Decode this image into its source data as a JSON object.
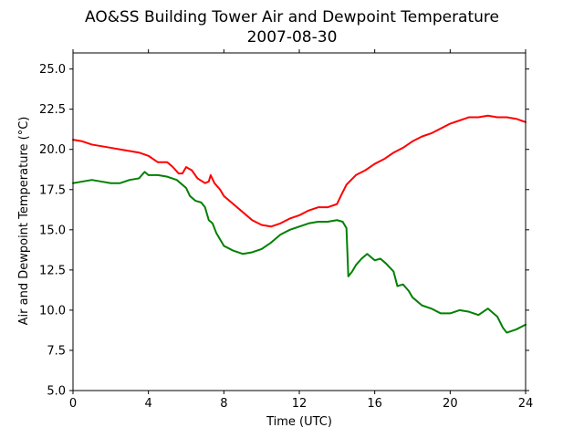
{
  "chart_data": {
    "type": "line",
    "title": "AO&SS Building Tower Air and Dewpoint Temperature",
    "subtitle": "2007-08-30",
    "xlabel": "Time (UTC)",
    "ylabel": "Air and Dewpoint Temperature (°C)",
    "xlim": [
      0,
      24
    ],
    "ylim": [
      5.0,
      26.0
    ],
    "x_ticks": [
      0,
      4,
      8,
      12,
      16,
      20,
      24
    ],
    "x_tick_labels": [
      "0",
      "4",
      "8",
      "12",
      "16",
      "20",
      "24"
    ],
    "y_ticks": [
      5.0,
      7.5,
      10.0,
      12.5,
      15.0,
      17.5,
      20.0,
      22.5,
      25.0
    ],
    "y_tick_labels": [
      "5.0",
      "7.5",
      "10.0",
      "12.5",
      "15.0",
      "17.5",
      "20.0",
      "22.5",
      "25.0"
    ],
    "grid": false,
    "legend": "none",
    "series": [
      {
        "color": "#ff0000",
        "x": [
          0,
          0.5,
          1,
          1.5,
          2,
          2.5,
          3,
          3.5,
          4,
          4.5,
          5,
          5.3,
          5.6,
          5.8,
          6,
          6.3,
          6.6,
          7,
          7.2,
          7.3,
          7.5,
          7.8,
          8,
          8.5,
          9,
          9.5,
          10,
          10.5,
          11,
          11.5,
          12,
          12.5,
          13,
          13.5,
          14,
          14.2,
          14.5,
          15,
          15.5,
          16,
          16.5,
          17,
          17.5,
          18,
          18.5,
          19,
          19.5,
          20,
          20.5,
          21,
          21.5,
          22,
          22.5,
          23,
          23.5,
          24
        ],
        "y": [
          20.6,
          20.5,
          20.3,
          20.2,
          20.1,
          20.0,
          19.9,
          19.8,
          19.6,
          19.2,
          19.2,
          18.9,
          18.5,
          18.5,
          18.9,
          18.7,
          18.2,
          17.9,
          18.0,
          18.4,
          17.9,
          17.5,
          17.1,
          16.6,
          16.1,
          15.6,
          15.3,
          15.2,
          15.4,
          15.7,
          15.9,
          16.2,
          16.4,
          16.4,
          16.6,
          17.1,
          17.8,
          18.4,
          18.7,
          19.1,
          19.4,
          19.8,
          20.1,
          20.5,
          20.8,
          21.0,
          21.3,
          21.6,
          21.8,
          22.0,
          22.0,
          22.1,
          22.0,
          22.0,
          21.9,
          21.7
        ]
      },
      {
        "color": "#008000",
        "x": [
          0,
          0.5,
          1,
          1.5,
          2,
          2.5,
          3,
          3.5,
          3.8,
          4,
          4.5,
          5,
          5.5,
          6,
          6.2,
          6.5,
          6.8,
          7,
          7.2,
          7.4,
          7.6,
          7.8,
          8,
          8.5,
          9,
          9.5,
          10,
          10.5,
          11,
          11.5,
          12,
          12.5,
          13,
          13.5,
          14,
          14.3,
          14.5,
          14.6,
          14.8,
          15,
          15.3,
          15.6,
          16,
          16.3,
          16.6,
          17,
          17.2,
          17.5,
          17.8,
          18,
          18.5,
          19,
          19.5,
          20,
          20.5,
          21,
          21.5,
          22,
          22.5,
          22.8,
          23,
          23.5,
          24
        ],
        "y": [
          17.9,
          18.0,
          18.1,
          18.0,
          17.9,
          17.9,
          18.1,
          18.2,
          18.6,
          18.4,
          18.4,
          18.3,
          18.1,
          17.6,
          17.1,
          16.8,
          16.7,
          16.4,
          15.6,
          15.4,
          14.8,
          14.4,
          14.0,
          13.7,
          13.5,
          13.6,
          13.8,
          14.2,
          14.7,
          15.0,
          15.2,
          15.4,
          15.5,
          15.5,
          15.6,
          15.5,
          15.1,
          12.1,
          12.4,
          12.8,
          13.2,
          13.5,
          13.1,
          13.2,
          12.9,
          12.4,
          11.5,
          11.6,
          11.2,
          10.8,
          10.3,
          10.1,
          9.8,
          9.8,
          10.0,
          9.9,
          9.7,
          10.1,
          9.6,
          8.9,
          8.6,
          8.8,
          9.1
        ]
      }
    ]
  }
}
